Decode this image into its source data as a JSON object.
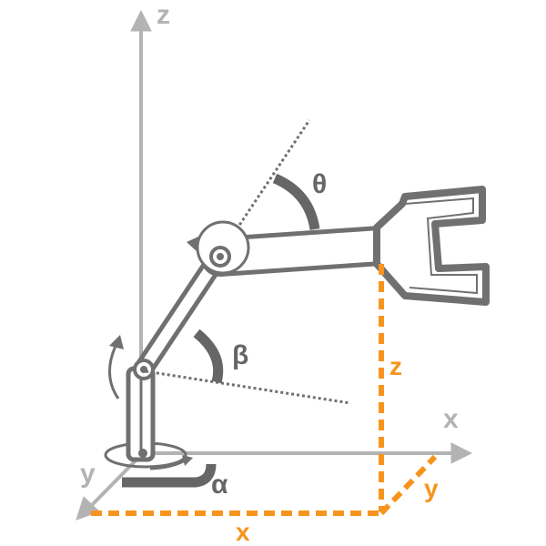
{
  "diagram": {
    "axes": {
      "z_label": "z",
      "x_label": "x",
      "y_label": "y"
    },
    "angles": {
      "alpha": "α",
      "beta": "β",
      "theta": "θ"
    },
    "dimensions": {
      "x": "x",
      "y": "y",
      "z": "z"
    },
    "colors": {
      "axis": "#b3b3b3",
      "arm_stroke": "#707070",
      "arm_fill": "#ffffff",
      "angle_marker": "#666666",
      "dimension": "#f7941d"
    }
  }
}
